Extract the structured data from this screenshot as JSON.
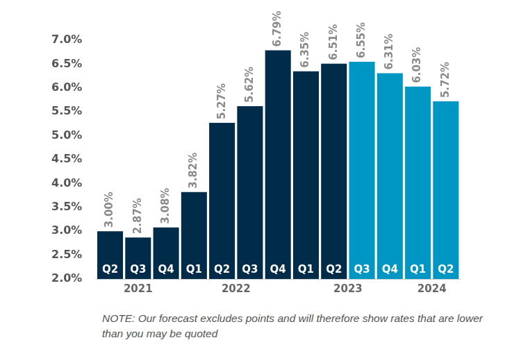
{
  "chart_data": {
    "type": "bar",
    "categories": [
      "Q2",
      "Q3",
      "Q4",
      "Q1",
      "Q2",
      "Q3",
      "Q4",
      "Q1",
      "Q2",
      "Q3",
      "Q4",
      "Q1",
      "Q2"
    ],
    "values": [
      3.0,
      2.87,
      3.08,
      3.82,
      5.27,
      5.62,
      6.79,
      6.35,
      6.51,
      6.55,
      6.31,
      6.03,
      5.72
    ],
    "value_labels": [
      "3.00%",
      "2.87%",
      "3.08%",
      "3.82%",
      "5.27%",
      "5.62%",
      "6.79%",
      "6.35%",
      "6.51%",
      "6.55%",
      "6.31%",
      "6.03%",
      "5.72%"
    ],
    "colors": [
      "#002b49",
      "#002b49",
      "#002b49",
      "#002b49",
      "#002b49",
      "#002b49",
      "#002b49",
      "#002b49",
      "#002b49",
      "#0096c4",
      "#0096c4",
      "#0096c4",
      "#0096c4"
    ],
    "groups": [
      {
        "label": "2021",
        "count": 3
      },
      {
        "label": "2022",
        "count": 4
      },
      {
        "label": "2023",
        "count": 4
      },
      {
        "label": "2024",
        "count": 2
      }
    ],
    "ylim": [
      2.0,
      7.0
    ],
    "yticks": [
      {
        "value": 2.0,
        "label": "2.0%"
      },
      {
        "value": 2.5,
        "label": "2.5%"
      },
      {
        "value": 3.0,
        "label": "3.0%"
      },
      {
        "value": 3.5,
        "label": "3.5%"
      },
      {
        "value": 4.0,
        "label": "4.0%"
      },
      {
        "value": 4.5,
        "label": "4.5%"
      },
      {
        "value": 5.0,
        "label": "5.0%"
      },
      {
        "value": 5.5,
        "label": "5.5%"
      },
      {
        "value": 6.0,
        "label": "6.0%"
      },
      {
        "value": 6.5,
        "label": "6.5%"
      },
      {
        "value": 7.0,
        "label": "7.0%"
      }
    ],
    "grid": false,
    "data_labels": true,
    "note": "NOTE: Our forecast excludes points and will therefore show rates that are lower than you may be quoted"
  }
}
